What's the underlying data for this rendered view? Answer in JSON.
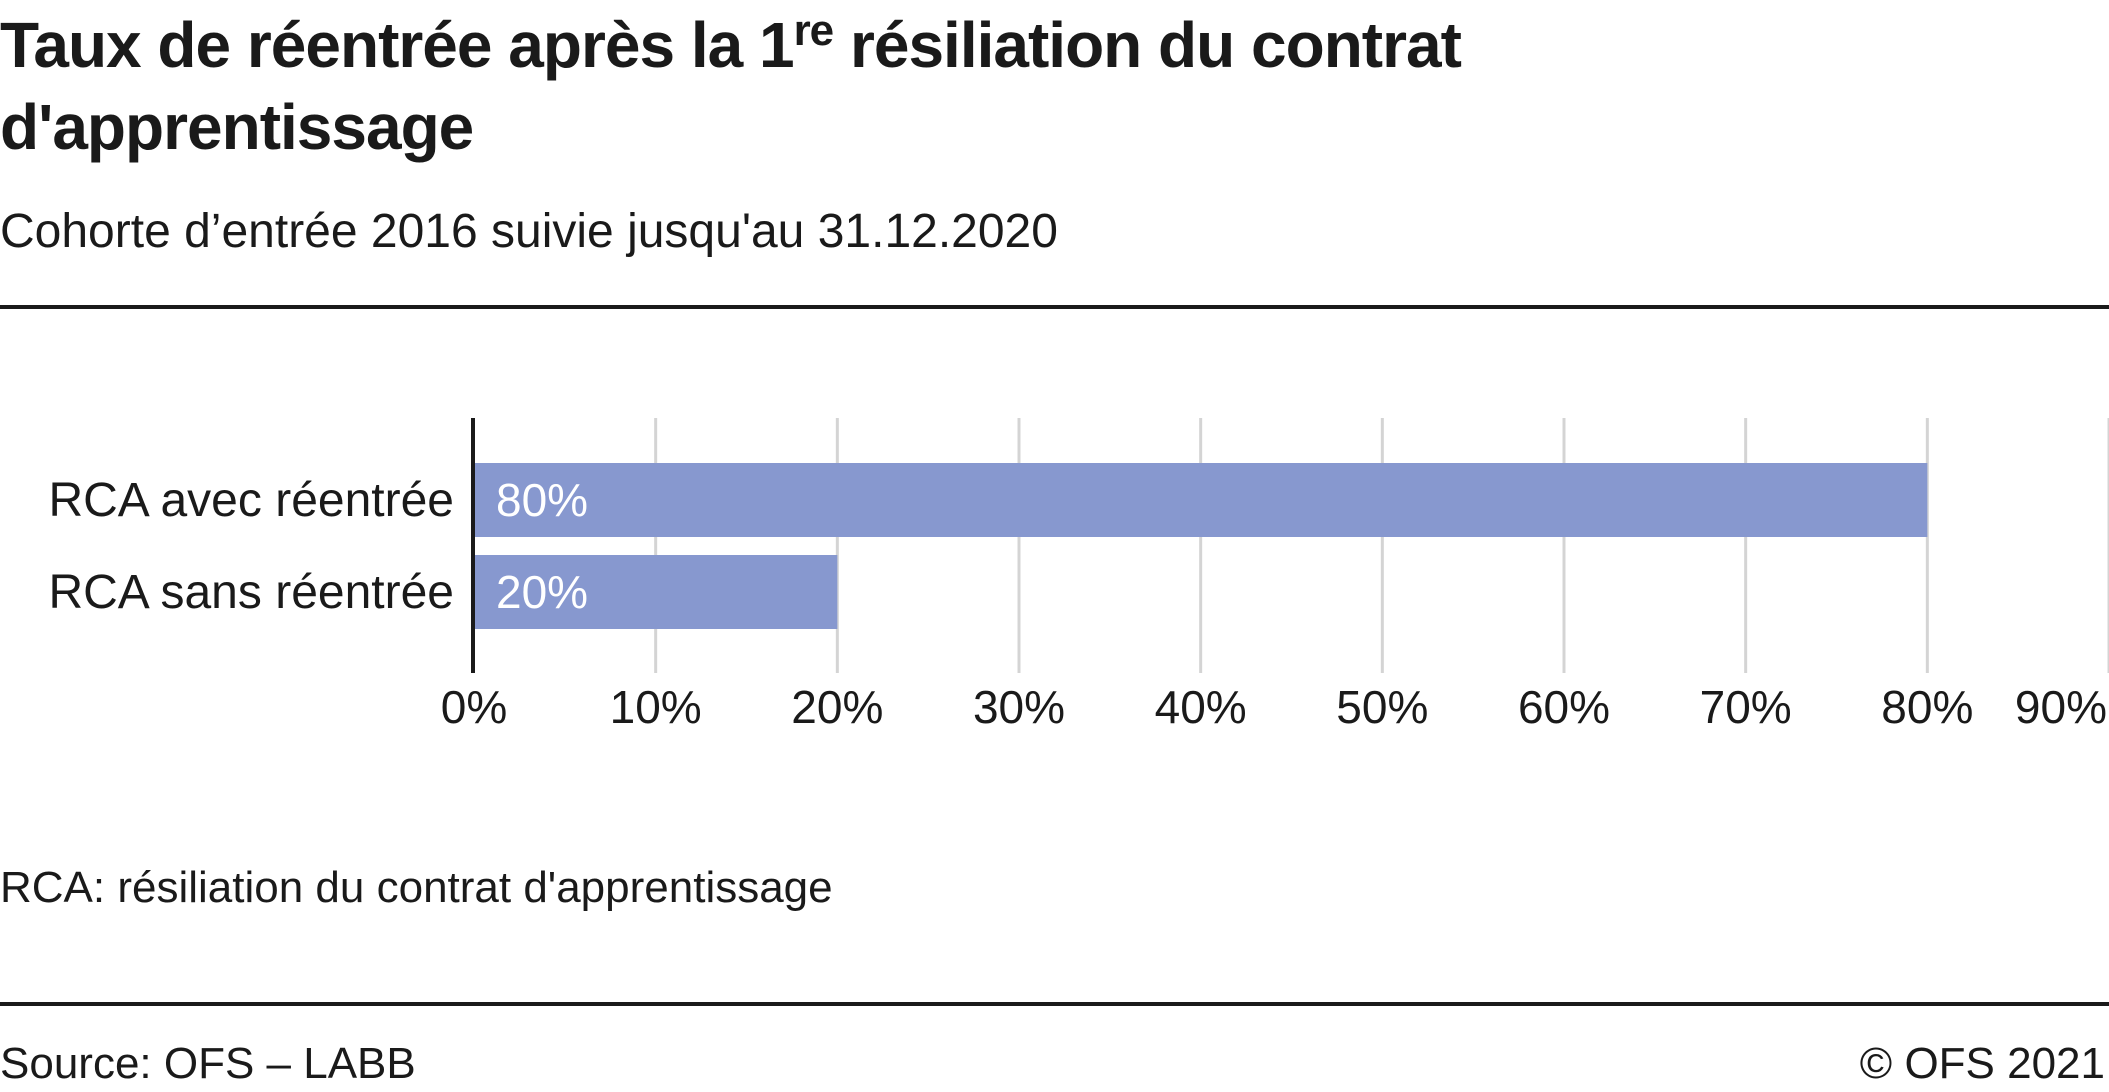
{
  "title_main": "Taux de réentrée après la 1",
  "title_sup": "re",
  "title_rest": " résiliation du contrat",
  "title_line2": "d'apprentissage",
  "subtitle": "Cohorte d’entrée 2016 suivie jusqu'au 31.12.2020",
  "note": "RCA: résiliation du contrat d'apprentissage",
  "source": "Source: OFS – LABB",
  "copyright": "© OFS 2021",
  "chart_data": {
    "type": "bar",
    "orientation": "horizontal",
    "categories": [
      "RCA avec réentrée",
      "RCA sans réentrée"
    ],
    "values": [
      80,
      20
    ],
    "data_labels": [
      "80%",
      "20%"
    ],
    "xlim": [
      0,
      90
    ],
    "xticks": [
      "0%",
      "10%",
      "20%",
      "30%",
      "40%",
      "50%",
      "60%",
      "70%",
      "80%",
      "90%"
    ],
    "grid": true,
    "bar_color": "#8798cf",
    "label_color": "#ffffff",
    "grid_color": "#d4d4d4"
  }
}
